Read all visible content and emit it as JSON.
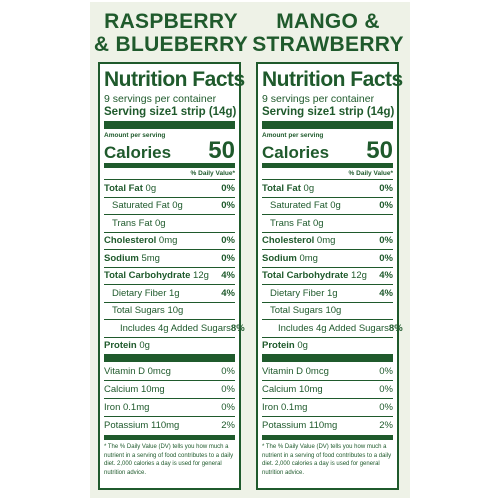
{
  "panels": [
    {
      "flavor_line1": "RASPBERRY",
      "flavor_line2": "& BLUEBERRY",
      "title": "Nutrition Facts",
      "servings": "9 servings per container",
      "serving_size_label": "Serving size",
      "serving_size_value": "1 strip (14g)",
      "amount_per_serving": "Amount per serving",
      "calories_label": "Calories",
      "calories_value": "50",
      "dv_header": "% Daily Value*",
      "rows": [
        {
          "label": "Total Fat",
          "amount": "0g",
          "dv": "0%"
        },
        {
          "label": "Saturated Fat",
          "amount": "0g",
          "dv": "0%"
        },
        {
          "label": "Trans Fat",
          "amount": "0g",
          "dv": ""
        },
        {
          "label": "Cholesterol",
          "amount": "0mg",
          "dv": "0%"
        },
        {
          "label": "Sodium",
          "amount": "5mg",
          "dv": "0%"
        },
        {
          "label": "Total Carbohydrate",
          "amount": "12g",
          "dv": "4%"
        },
        {
          "label": "Dietary Fiber",
          "amount": "1g",
          "dv": "4%"
        },
        {
          "label": "Total Sugars",
          "amount": "10g",
          "dv": ""
        },
        {
          "label": "Includes 4g Added Sugars",
          "amount": "",
          "dv": "8%"
        },
        {
          "label": "Protein",
          "amount": "0g",
          "dv": ""
        }
      ],
      "vitamins": [
        {
          "text": "Vitamin D 0mcg",
          "dv": "0%"
        },
        {
          "text": "Calcium 10mg",
          "dv": "0%"
        },
        {
          "text": "Iron 0.1mg",
          "dv": "0%"
        },
        {
          "text": "Potassium 110mg",
          "dv": "2%"
        }
      ],
      "footnote": "* The % Daily Value (DV) tells you how much a nutrient in a serving of food contributes to a daily diet. 2,000 calories a day is used for general nutrition advice."
    },
    {
      "flavor_line1": "MANGO &",
      "flavor_line2": "STRAWBERRY",
      "title": "Nutrition Facts",
      "servings": "9 servings per container",
      "serving_size_label": "Serving size",
      "serving_size_value": "1 strip (14g)",
      "amount_per_serving": "Amount per serving",
      "calories_label": "Calories",
      "calories_value": "50",
      "dv_header": "% Daily Value*",
      "rows": [
        {
          "label": "Total Fat",
          "amount": "0g",
          "dv": "0%"
        },
        {
          "label": "Saturated Fat",
          "amount": "0g",
          "dv": "0%"
        },
        {
          "label": "Trans Fat",
          "amount": "0g",
          "dv": ""
        },
        {
          "label": "Cholesterol",
          "amount": "0mg",
          "dv": "0%"
        },
        {
          "label": "Sodium",
          "amount": "0mg",
          "dv": "0%"
        },
        {
          "label": "Total Carbohydrate",
          "amount": "12g",
          "dv": "4%"
        },
        {
          "label": "Dietary Fiber",
          "amount": "1g",
          "dv": "4%"
        },
        {
          "label": "Total Sugars",
          "amount": "10g",
          "dv": ""
        },
        {
          "label": "Includes 4g Added Sugars",
          "amount": "",
          "dv": "8%"
        },
        {
          "label": "Protein",
          "amount": "0g",
          "dv": ""
        }
      ],
      "vitamins": [
        {
          "text": "Vitamin D 0mcg",
          "dv": "0%"
        },
        {
          "text": "Calcium 10mg",
          "dv": "0%"
        },
        {
          "text": "Iron 0.1mg",
          "dv": "0%"
        },
        {
          "text": "Potassium 110mg",
          "dv": "2%"
        }
      ],
      "footnote": "* The % Daily Value (DV) tells you how much a nutrient in a serving of food contributes to a daily diet. 2,000 calories a day is used for general nutrition advice."
    }
  ]
}
